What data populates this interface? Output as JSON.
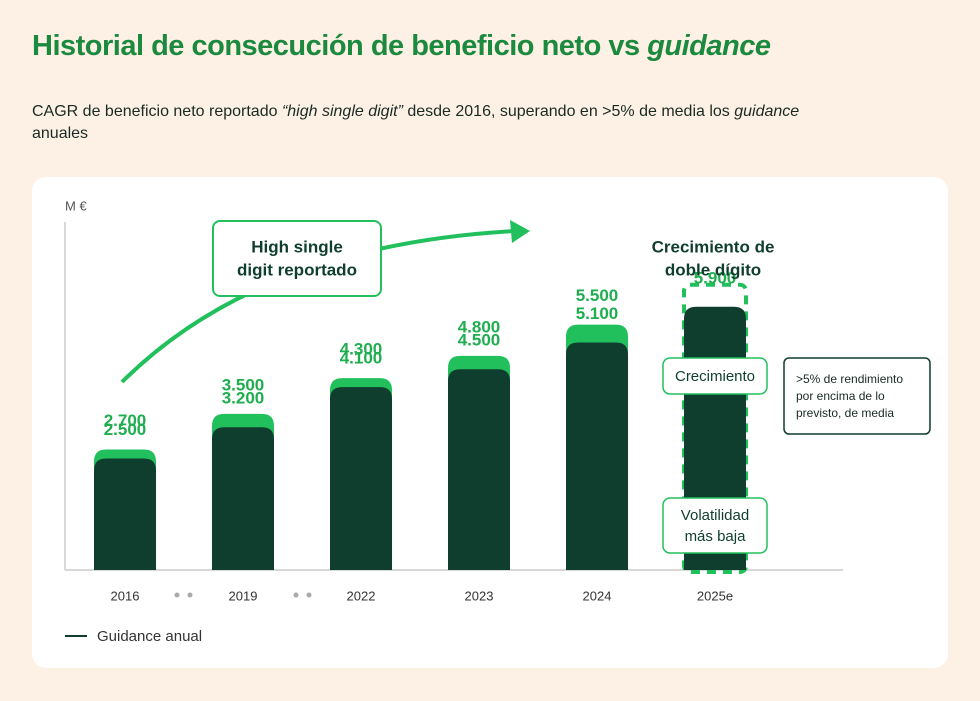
{
  "chart_data": {
    "type": "bar",
    "title": "Historial de consecución de beneficio neto vs",
    "title_italic": "guidance",
    "subtitle": [
      "CAGR de beneficio neto reportado ",
      "“high single digit”",
      " desde 2016, superando en >5% de media los ",
      "guidance",
      " anuales"
    ],
    "y_label": "M €",
    "categories": [
      "2016",
      "2019",
      "2022",
      "2023",
      "2024",
      "2025e"
    ],
    "ylim": [
      0,
      7800
    ],
    "series": [
      {
        "color": "#22c05c",
        "values": [
          2700,
          3500,
          4300,
          4800,
          5500,
          null
        ],
        "value_labels": [
          "2.700",
          "3.500",
          "4.300",
          "4.800",
          "5.500",
          null
        ]
      },
      {
        "name": "Guidance anual",
        "color": "#0f3d2e",
        "values": [
          2500,
          3200,
          4100,
          4500,
          5100,
          5900
        ],
        "value_labels": [
          "2.500",
          "3.200",
          "4.100",
          "4.500",
          "5.100",
          "5.900"
        ]
      }
    ],
    "annotations": {
      "arrow_label": [
        "High single",
        "digit reportado"
      ],
      "forecast_label": [
        "Crecimiento de",
        "doble dígito"
      ],
      "tag_growth": "Crecimiento",
      "tag_volatility": [
        "Volatilidad",
        "más baja"
      ],
      "note": [
        ">5% de rendimiento",
        "por encima de lo",
        "previsto, de media"
      ]
    }
  }
}
